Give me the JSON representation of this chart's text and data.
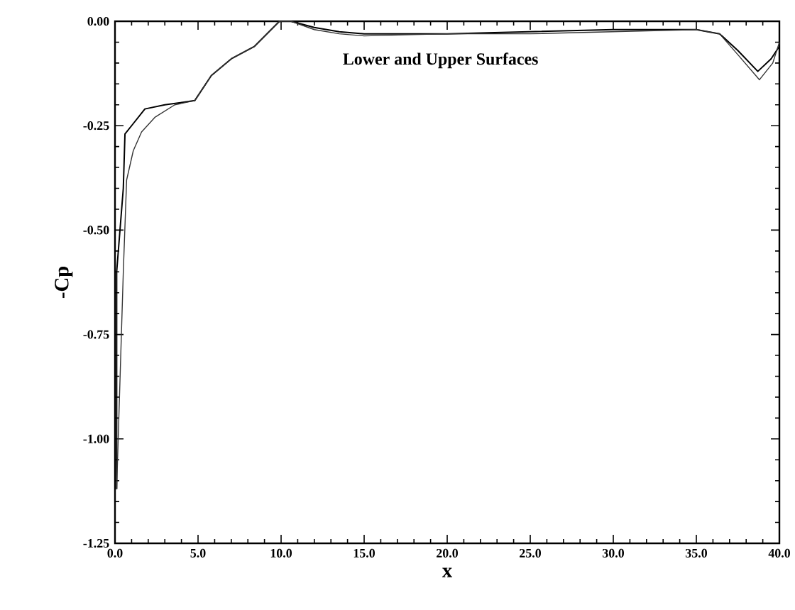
{
  "chart_data": {
    "type": "line",
    "xlabel": "x",
    "ylabel": "-Cp",
    "annotations": [
      "Lower and Upper Surfaces"
    ],
    "xlim": [
      0,
      40
    ],
    "ylim": [
      -1.25,
      0
    ],
    "xticks": [
      {
        "value": 0,
        "label": "0.0"
      },
      {
        "value": 5,
        "label": "5.0"
      },
      {
        "value": 10,
        "label": "10.0"
      },
      {
        "value": 15,
        "label": "15.0"
      },
      {
        "value": 20,
        "label": "20.0"
      },
      {
        "value": 25,
        "label": "25.0"
      },
      {
        "value": 30,
        "label": "30.0"
      },
      {
        "value": 35,
        "label": "35.0"
      },
      {
        "value": 40,
        "label": "40.0"
      }
    ],
    "yticks": [
      {
        "value": -1.25,
        "label": "-1.25"
      },
      {
        "value": -1.0,
        "label": "-1.00"
      },
      {
        "value": -0.75,
        "label": "-0.75"
      },
      {
        "value": -0.5,
        "label": "-0.50"
      },
      {
        "value": -0.25,
        "label": "-0.25"
      },
      {
        "value": 0,
        "label": "0.00"
      }
    ],
    "grid": false,
    "marker": "none",
    "line_style": "solid",
    "series": [
      {
        "color": "#000000",
        "x": [
          0.1,
          0.1,
          0.5,
          0.6,
          1.1,
          1.8,
          3.0,
          4.8,
          5.8,
          7.0,
          8.4,
          9.9,
          10.6,
          12.0,
          13.5,
          15.0,
          20.0,
          25.0,
          30.0,
          35.0,
          36.4,
          37.5,
          38.7,
          39.5,
          40.0
        ],
        "values": [
          -1.12,
          -0.6,
          -0.4,
          -0.27,
          -0.245,
          -0.21,
          -0.2,
          -0.19,
          -0.13,
          -0.09,
          -0.06,
          0,
          0,
          -0.015,
          -0.025,
          -0.03,
          -0.03,
          -0.025,
          -0.02,
          -0.02,
          -0.03,
          -0.07,
          -0.12,
          -0.09,
          -0.06
        ]
      },
      {
        "color": "#333333",
        "x": [
          0.1,
          0.5,
          0.7,
          1.1,
          1.6,
          2.4,
          3.6,
          4.8,
          5.8,
          7.0,
          8.4,
          9.9,
          10.6,
          12.0,
          13.5,
          15.0,
          20.0,
          25.0,
          30.0,
          35.0,
          36.4,
          37.5,
          38.8,
          39.6,
          40.0
        ],
        "values": [
          -1.12,
          -0.6,
          -0.38,
          -0.31,
          -0.265,
          -0.23,
          -0.2,
          -0.19,
          -0.13,
          -0.09,
          -0.06,
          0,
          0,
          -0.02,
          -0.03,
          -0.035,
          -0.03,
          -0.03,
          -0.025,
          -0.02,
          -0.03,
          -0.08,
          -0.14,
          -0.1,
          -0.05
        ]
      }
    ]
  }
}
